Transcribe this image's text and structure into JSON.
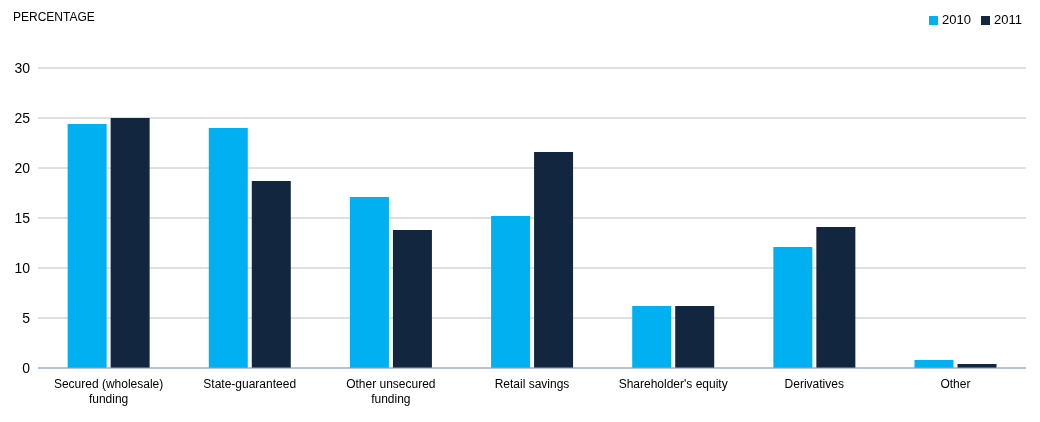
{
  "chart_data": {
    "type": "bar",
    "ylabel": "PERCENTAGE",
    "categories": [
      "Secured (wholesale) funding",
      "State-guaranteed",
      "Other unsecured funding",
      "Retail savings",
      "Shareholder's equity",
      "Derivatives",
      "Other"
    ],
    "series": [
      {
        "name": "2010",
        "color": "#00b0f0",
        "values": [
          24.4,
          24.0,
          17.1,
          15.2,
          6.2,
          12.1,
          0.8
        ]
      },
      {
        "name": "2011",
        "color": "#13263f",
        "values": [
          25.0,
          18.7,
          13.8,
          21.6,
          6.2,
          14.1,
          0.4
        ]
      }
    ],
    "ylim": [
      0,
      30
    ],
    "yticks": [
      0,
      5,
      10,
      15,
      20,
      25,
      30
    ],
    "grid": "y",
    "legend": "top right"
  }
}
